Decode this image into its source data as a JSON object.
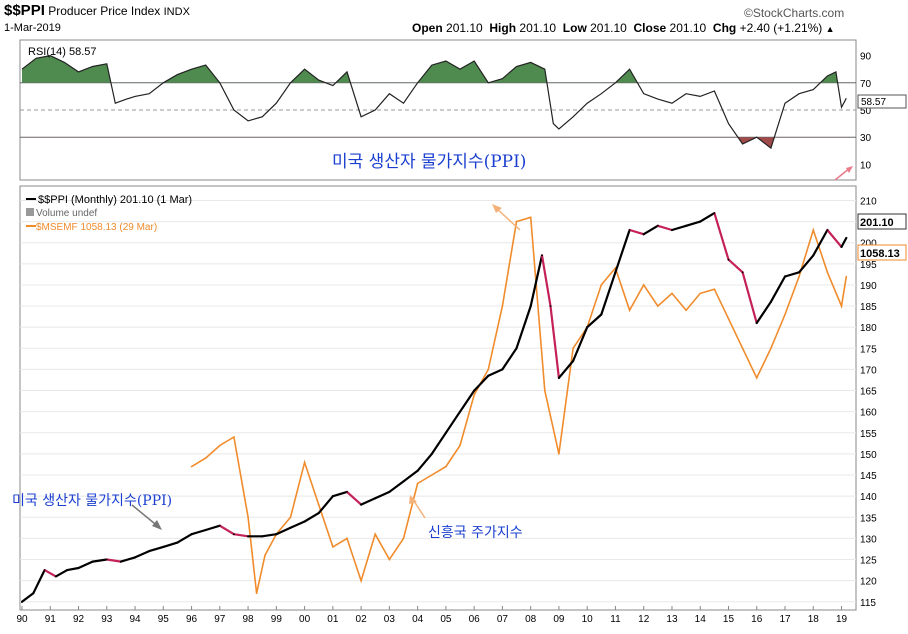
{
  "header": {
    "symbol": "$$PPI",
    "name": "Producer Price Index",
    "exchange": "INDX",
    "date": "1-Mar-2019",
    "open_label": "Open",
    "open": "201.10",
    "high_label": "High",
    "high": "201.10",
    "low_label": "Low",
    "low": "201.10",
    "close_label": "Close",
    "close": "201.10",
    "chg_label": "Chg",
    "chg": "+2.40 (+1.21%)",
    "brand": "©StockCharts.com"
  },
  "rsi_panel": {
    "label": "RSI(14) 58.57",
    "value_badge": "58.57",
    "ticks": [
      "90",
      "70",
      "50",
      "30",
      "10"
    ],
    "overbought": 70,
    "oversold": 30
  },
  "legend": {
    "ppi": "$$PPI (Monthly) 201.10 (1 Mar)",
    "volume": "Volume undef",
    "msemf": "$MSEMF 1058.13 (29 Mar)"
  },
  "badges": {
    "ppi": "201.10",
    "msemf": "1058.13"
  },
  "annotations": {
    "top": "미국 생산자 물가지수(PPI)",
    "left": "미국 생산자 물가지수(PPI)",
    "em": "신흥국 주가지수"
  },
  "colors": {
    "ppi": "#000000",
    "ppi_high": "#c4205a",
    "msemf": "#f08c2c",
    "rsi_fill": "#4f8a4f",
    "rsi_low": "#a04a4a",
    "annotation": "#1a3fd0"
  },
  "chart_data": {
    "type": "line",
    "x_ticks": [
      "90",
      "91",
      "92",
      "93",
      "94",
      "95",
      "96",
      "97",
      "98",
      "99",
      "00",
      "01",
      "02",
      "03",
      "04",
      "05",
      "06",
      "07",
      "08",
      "09",
      "10",
      "11",
      "12",
      "13",
      "14",
      "15",
      "16",
      "17",
      "18",
      "19"
    ],
    "y_ticks": [
      115,
      120,
      125,
      130,
      135,
      140,
      145,
      150,
      155,
      160,
      165,
      170,
      175,
      180,
      185,
      190,
      195,
      200,
      205,
      210
    ],
    "ylim": [
      114,
      212
    ],
    "series": [
      {
        "name": "$$PPI",
        "x": [
          1990.0,
          1990.4,
          1990.8,
          1991.2,
          1991.6,
          1992.0,
          1992.5,
          1993.0,
          1993.5,
          1994.0,
          1994.5,
          1995.0,
          1995.5,
          1996.0,
          1996.5,
          1997.0,
          1997.5,
          1998.0,
          1998.5,
          1999.0,
          1999.5,
          2000.0,
          2000.5,
          2001.0,
          2001.5,
          2002.0,
          2002.5,
          2003.0,
          2003.5,
          2004.0,
          2004.5,
          2005.0,
          2005.5,
          2006.0,
          2006.5,
          2007.0,
          2007.5,
          2008.0,
          2008.4,
          2008.7,
          2009.0,
          2009.5,
          2010.0,
          2010.5,
          2011.0,
          2011.5,
          2012.0,
          2012.5,
          2013.0,
          2013.5,
          2014.0,
          2014.5,
          2015.0,
          2015.5,
          2016.0,
          2016.5,
          2017.0,
          2017.5,
          2018.0,
          2018.5,
          2019.0,
          2019.17
        ],
        "values": [
          115.0,
          117.0,
          122.5,
          121.0,
          122.5,
          123.0,
          124.5,
          125.0,
          124.5,
          125.5,
          127.0,
          128.0,
          129.0,
          131.0,
          132.0,
          133.0,
          131.0,
          130.5,
          130.5,
          131.0,
          132.5,
          134.0,
          136.0,
          140.0,
          141.0,
          138.0,
          139.5,
          141.0,
          143.5,
          146.0,
          150.0,
          155.0,
          160.0,
          165.0,
          168.5,
          170.0,
          175.0,
          185.0,
          197.0,
          185.0,
          168.0,
          172.0,
          180.0,
          183.0,
          193.0,
          203.0,
          202.0,
          204.0,
          203.0,
          204.0,
          205.0,
          207.0,
          196.0,
          193.0,
          181.0,
          186.0,
          192.0,
          193.0,
          197.0,
          203.0,
          199.0,
          201.1
        ]
      },
      {
        "name": "$MSEMF",
        "x": [
          1996.0,
          1996.5,
          1997.0,
          1997.5,
          1998.0,
          1998.3,
          1998.6,
          1999.0,
          1999.5,
          2000.0,
          2000.5,
          2001.0,
          2001.5,
          2002.0,
          2002.5,
          2003.0,
          2003.5,
          2004.0,
          2004.5,
          2005.0,
          2005.5,
          2006.0,
          2006.5,
          2007.0,
          2007.5,
          2008.0,
          2008.5,
          2009.0,
          2009.5,
          2010.0,
          2010.5,
          2011.0,
          2011.5,
          2012.0,
          2012.5,
          2013.0,
          2013.5,
          2014.0,
          2014.5,
          2015.0,
          2015.5,
          2016.0,
          2016.5,
          2017.0,
          2017.5,
          2018.0,
          2018.5,
          2019.0,
          2019.17
        ],
        "values": [
          147.0,
          149.0,
          152.0,
          154.0,
          135.0,
          117.0,
          126.0,
          131.0,
          135.0,
          148.0,
          138.0,
          128.0,
          130.0,
          120.0,
          131.0,
          125.0,
          130.0,
          143.0,
          145.0,
          147.0,
          152.0,
          164.0,
          170.0,
          185.0,
          205.0,
          206.0,
          165.0,
          150.0,
          175.0,
          180.0,
          190.0,
          194.0,
          184.0,
          190.0,
          185.0,
          188.0,
          184.0,
          188.0,
          189.0,
          182.0,
          175.0,
          168.0,
          175.0,
          183.0,
          192.0,
          203.0,
          193.0,
          185.0,
          192.0
        ]
      }
    ],
    "rsi": {
      "name": "RSI(14)",
      "ylim": [
        0,
        100
      ],
      "x": [
        1990.0,
        1990.5,
        1991.0,
        1991.5,
        1992.0,
        1992.5,
        1993.0,
        1993.3,
        1993.7,
        1994.0,
        1994.5,
        1995.0,
        1995.5,
        1996.0,
        1996.5,
        1997.0,
        1997.5,
        1998.0,
        1998.5,
        1999.0,
        1999.5,
        2000.0,
        2000.5,
        2001.0,
        2001.5,
        2002.0,
        2002.5,
        2003.0,
        2003.5,
        2004.0,
        2004.5,
        2005.0,
        2005.5,
        2006.0,
        2006.5,
        2007.0,
        2007.5,
        2008.0,
        2008.5,
        2008.8,
        2009.0,
        2009.5,
        2010.0,
        2010.5,
        2011.0,
        2011.5,
        2012.0,
        2012.5,
        2013.0,
        2013.5,
        2014.0,
        2014.5,
        2015.0,
        2015.5,
        2016.0,
        2016.5,
        2017.0,
        2017.5,
        2018.0,
        2018.5,
        2018.8,
        2019.0,
        2019.17
      ],
      "values": [
        80.0,
        88.0,
        90.0,
        85.0,
        78.0,
        82.0,
        84.0,
        55.0,
        58.0,
        60.0,
        62.0,
        70.0,
        76.0,
        80.0,
        83.0,
        70.0,
        50.0,
        42.0,
        45.0,
        55.0,
        70.0,
        80.0,
        72.0,
        68.0,
        78.0,
        45.0,
        50.0,
        62.0,
        55.0,
        70.0,
        83.0,
        86.0,
        80.0,
        86.0,
        70.0,
        73.0,
        82.0,
        85.0,
        80.0,
        40.0,
        36.0,
        45.0,
        55.0,
        62.0,
        70.0,
        80.0,
        62.0,
        58.0,
        55.0,
        62.0,
        60.0,
        64.0,
        40.0,
        25.0,
        30.0,
        22.0,
        55.0,
        62.0,
        65.0,
        75.0,
        78.0,
        52.0,
        58.57
      ]
    }
  }
}
